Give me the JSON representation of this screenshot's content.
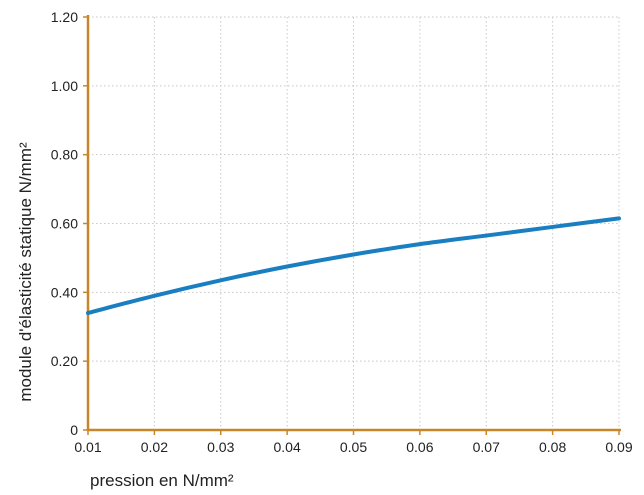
{
  "chart_data": {
    "type": "line",
    "title": "",
    "xlabel": "pression en N/mm²",
    "ylabel": "module d'élasticité statique N/mm²",
    "xlim": [
      0.01,
      0.09
    ],
    "ylim": [
      0,
      1.2
    ],
    "x_ticks": [
      "0.01",
      "0.02",
      "0.03",
      "0.04",
      "0.05",
      "0.06",
      "0.07",
      "0.08",
      "0.09"
    ],
    "y_ticks": [
      "0",
      "0.20",
      "0.40",
      "0.60",
      "0.80",
      "1.00",
      "1.20"
    ],
    "grid": true,
    "series": [
      {
        "x": [
          0.01,
          0.02,
          0.03,
          0.04,
          0.05,
          0.06,
          0.07,
          0.08,
          0.09
        ],
        "y": [
          0.34,
          0.39,
          0.435,
          0.475,
          0.51,
          0.54,
          0.565,
          0.59,
          0.615
        ]
      }
    ],
    "colors": {
      "line": "#1a7fc1",
      "axis": "#c8862a",
      "grid": "#c8c8c8"
    }
  }
}
